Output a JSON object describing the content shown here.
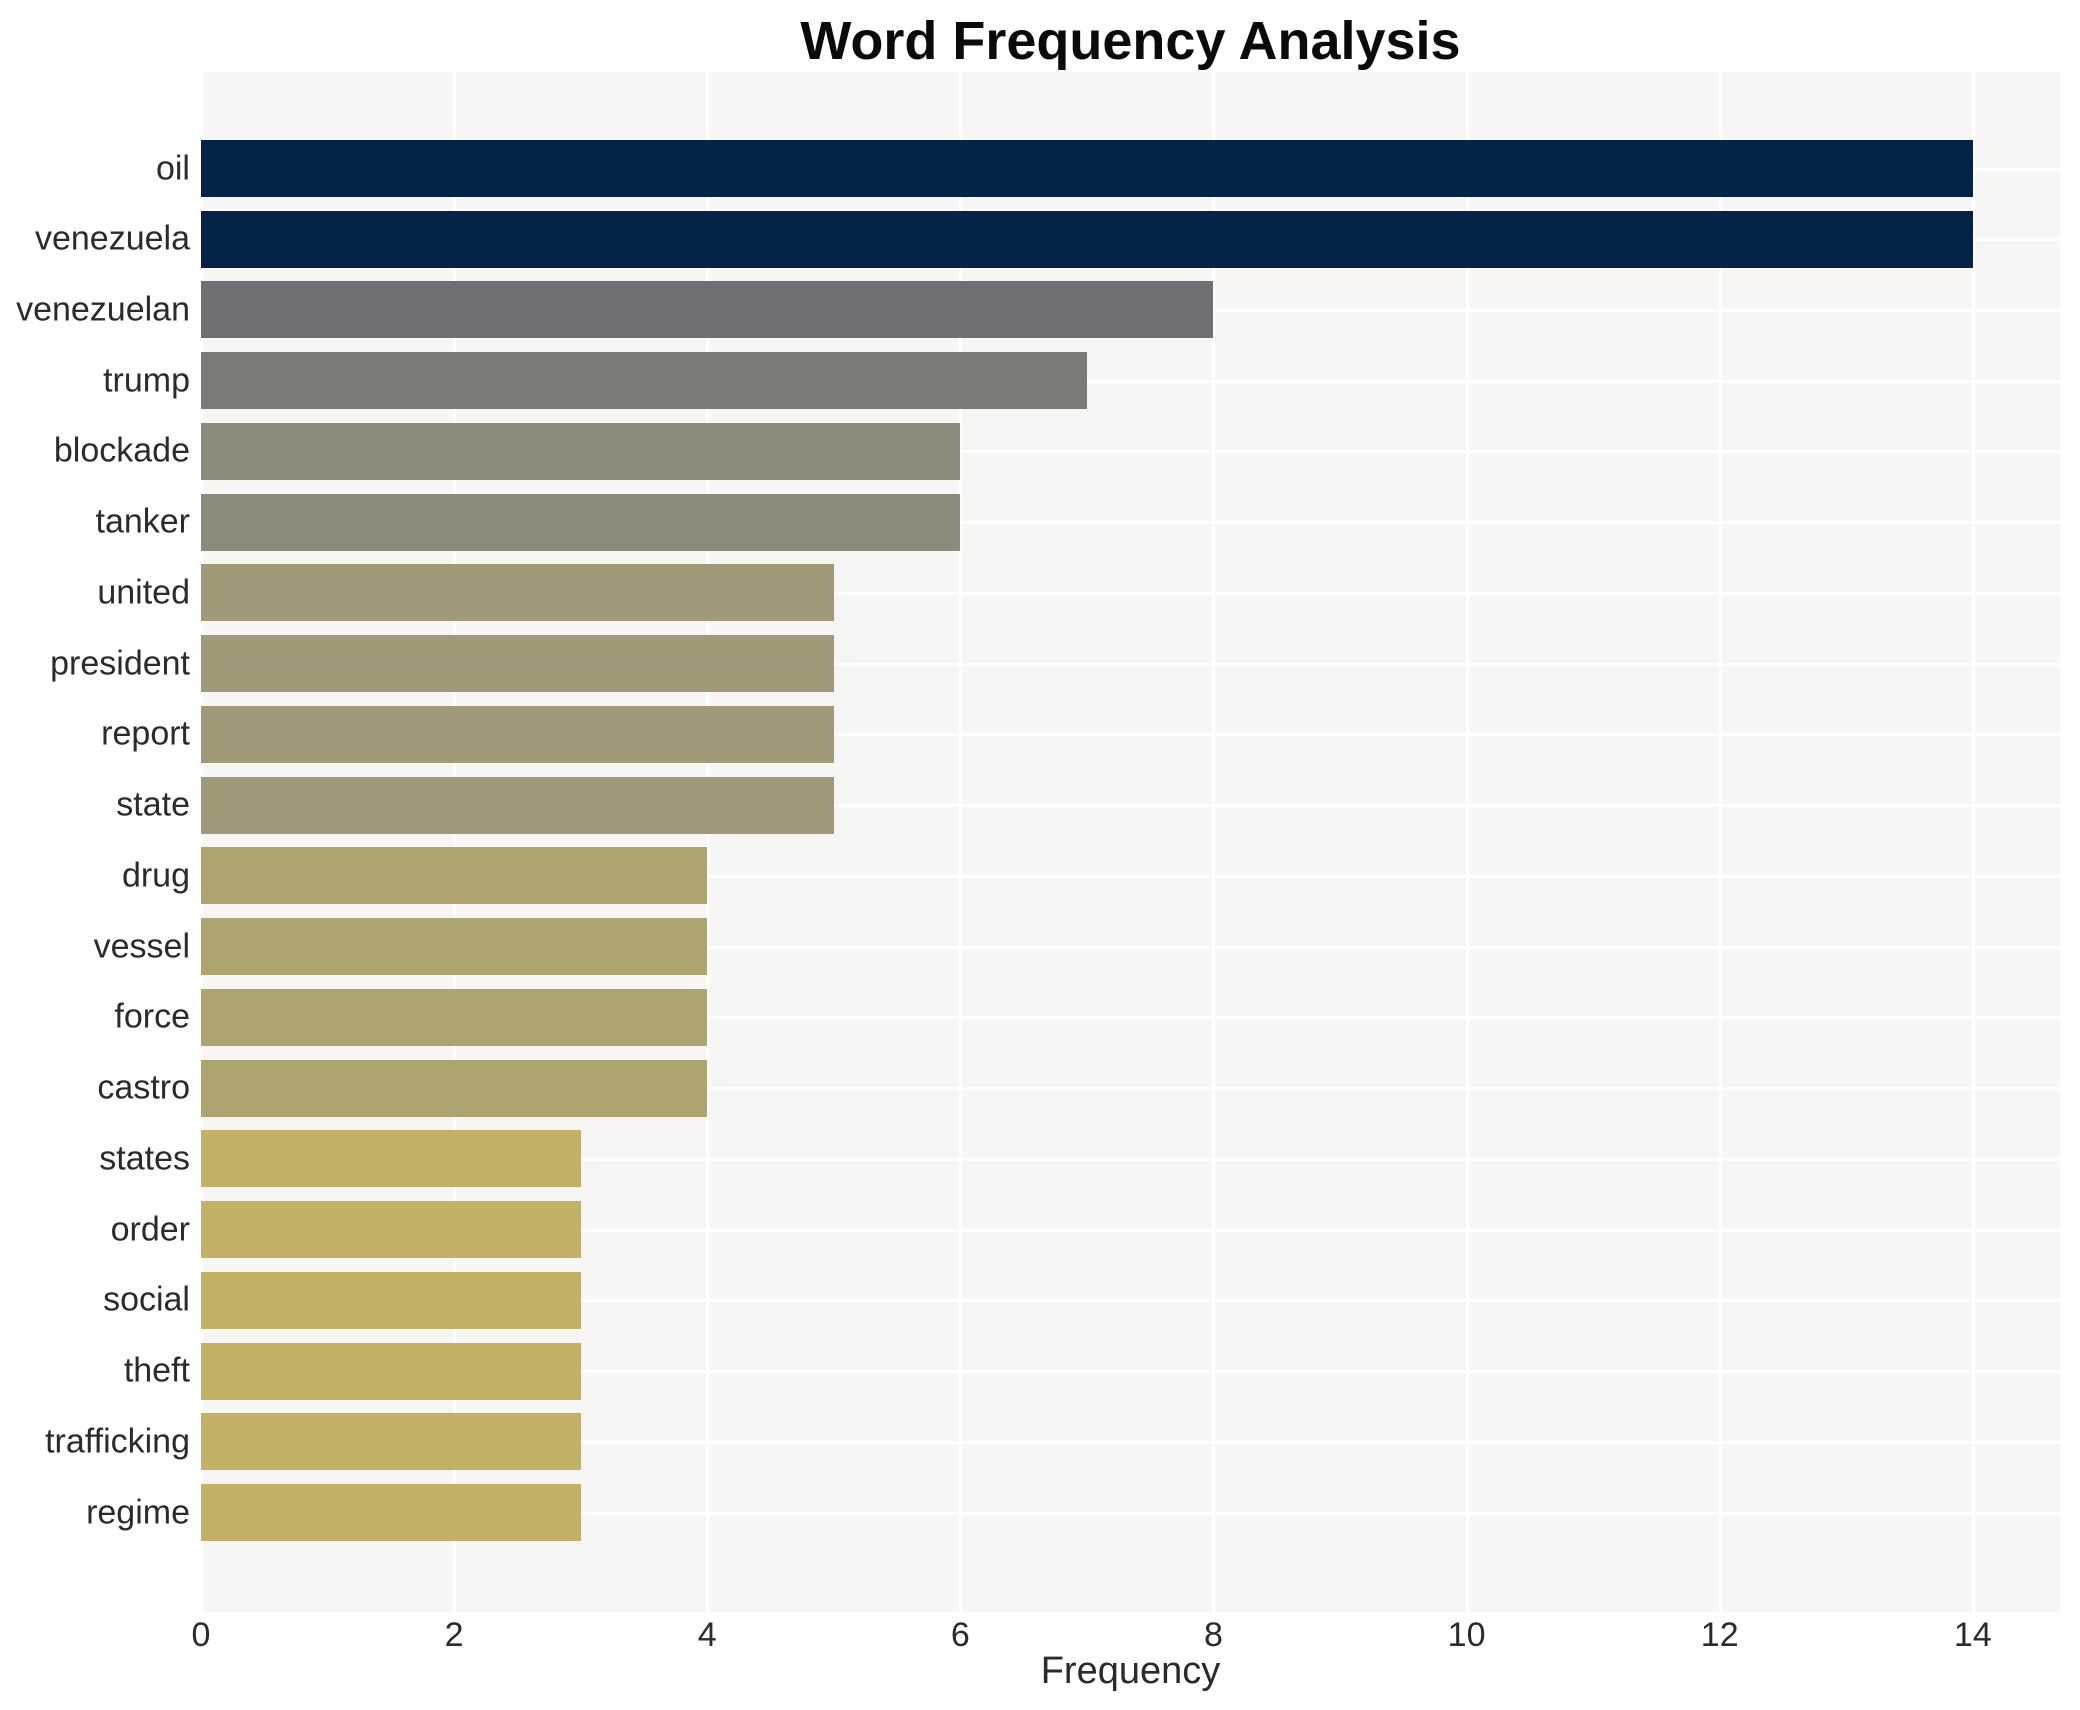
{
  "title": "Word Frequency Analysis",
  "chart_data": {
    "type": "bar",
    "orientation": "horizontal",
    "title": "Word Frequency Analysis",
    "xlabel": "Frequency",
    "ylabel": "",
    "categories": [
      "oil",
      "venezuela",
      "venezuelan",
      "trump",
      "blockade",
      "tanker",
      "united",
      "president",
      "report",
      "state",
      "drug",
      "vessel",
      "force",
      "castro",
      "states",
      "order",
      "social",
      "theft",
      "trafficking",
      "regime"
    ],
    "values": [
      14,
      14,
      8,
      7,
      6,
      6,
      5,
      5,
      5,
      5,
      4,
      4,
      4,
      4,
      3,
      3,
      3,
      3,
      3,
      3
    ],
    "bar_colors": [
      "#032349",
      "#032349",
      "#6e7075",
      "#7b7a74",
      "#8e8a7b",
      "#8e8a7b",
      "#a19a79",
      "#a19a79",
      "#a19a79",
      "#a19a79",
      "#aea470",
      "#aea470",
      "#aea470",
      "#aea470",
      "#c3b166",
      "#c3b166",
      "#c3b166",
      "#c3b166",
      "#c3b166",
      "#c3b166"
    ],
    "xticks": [
      0,
      2,
      4,
      6,
      8,
      10,
      12,
      14
    ],
    "xlim": [
      0,
      14.7
    ],
    "grid": true,
    "grid_color": "#ffffff",
    "plot_background": "#f7f6f4",
    "page_background": "#ffffff",
    "legend": "none"
  }
}
